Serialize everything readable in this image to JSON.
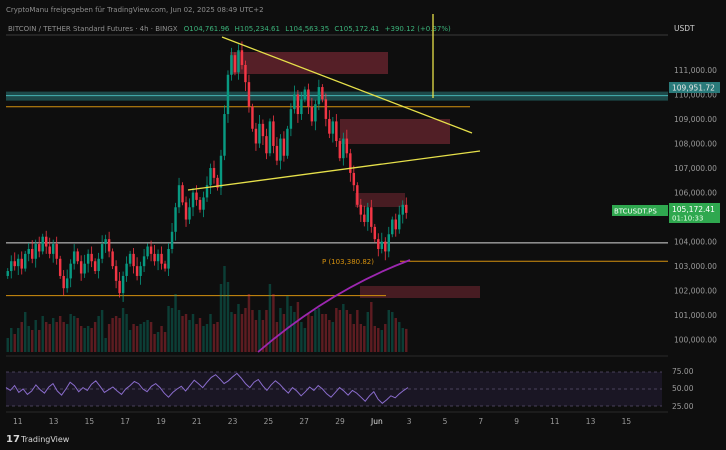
{
  "header": {
    "attribution": "CryptoManu freigegeben für TradingView.com, Jun 02, 2025 08:49 UTC+2",
    "symbol_line": "BITCOIN / TETHER Standard Futures · 4h · BINGX",
    "ohlc": {
      "open": "O104,761.96",
      "high": "H105,234.61",
      "low": "L104,563.35",
      "close": "C105,172.41",
      "change": "+390.12 (+0.37%)"
    }
  },
  "currency": "USDT",
  "price_labels": {
    "resistance": "109,951.72",
    "current_symbol": "BTCUSDT.PS",
    "current_price": "105,172.41",
    "countdown": "01:10:33",
    "low_marker": "P (103,380.82)"
  },
  "rsi_labels": [
    "75.00",
    "50.00",
    "25.00"
  ],
  "footer": {
    "brand": "TradingView"
  },
  "colors": {
    "background": "#0e0e0e",
    "up": "#089981",
    "down": "#f23645",
    "resistance_band": "#2a7a7a",
    "current_price": "#2fa84f",
    "trendline": "#e6e04a",
    "orange_level": "#d4900e",
    "supply_zone": "#6e2630",
    "rsi_line": "#8a6ccc",
    "ma_line": "#9c27b0"
  },
  "chart_data": {
    "type": "candlestick",
    "x_tick_labels": [
      "11",
      "13",
      "15",
      "17",
      "19",
      "21",
      "23",
      "25",
      "27",
      "29",
      "Jun",
      "3",
      "5",
      "7",
      "9",
      "11",
      "13",
      "15"
    ],
    "y_tick_labels": [
      "111,000.00",
      "110,000.00",
      "109,000.00",
      "108,000.00",
      "107,000.00",
      "106,000.00",
      "105,000.00",
      "104,000.00",
      "103,000.00",
      "102,000.00",
      "101,000.00",
      "100,000.00"
    ],
    "ylim": [
      99500,
      112300
    ],
    "grid": false,
    "close_series": [
      102800,
      103200,
      103000,
      103300,
      102900,
      103500,
      103700,
      103300,
      103900,
      103600,
      104200,
      103800,
      103500,
      103900,
      103300,
      102600,
      102100,
      102500,
      103100,
      103600,
      103200,
      102700,
      103100,
      103500,
      103200,
      102800,
      103300,
      103900,
      104100,
      103600,
      103000,
      102400,
      101900,
      102600,
      103100,
      103500,
      103000,
      102600,
      103000,
      103400,
      103800,
      103500,
      103200,
      103500,
      103100,
      102900,
      103700,
      104400,
      105400,
      106300,
      105600,
      104900,
      105400,
      106000,
      105700,
      105300,
      105800,
      106300,
      107000,
      106600,
      106200,
      107500,
      109200,
      110800,
      111600,
      110900,
      111800,
      111200,
      110500,
      109500,
      108600,
      108000,
      108800,
      108300,
      107600,
      108900,
      107900,
      107300,
      108200,
      107500,
      108600,
      109400,
      110000,
      109200,
      109800,
      110200,
      109500,
      108900,
      109600,
      110300,
      109800,
      109000,
      108400,
      108900,
      108100,
      107400,
      108200,
      107600,
      106800,
      106300,
      105500,
      105100,
      104800,
      105400,
      104600,
      104100,
      103700,
      104000,
      103600,
      104300,
      104900,
      104500,
      105100,
      105500,
      105172
    ],
    "levels": [
      {
        "price": 109951.72,
        "kind": "resistance"
      },
      {
        "price": 109500,
        "kind": "orange"
      },
      {
        "price": 103950,
        "kind": "white"
      },
      {
        "price": 103200,
        "kind": "orange"
      },
      {
        "price": 101800,
        "kind": "orange"
      }
    ],
    "rsi_values": [
      52,
      48,
      55,
      45,
      50,
      42,
      47,
      56,
      49,
      44,
      53,
      58,
      47,
      41,
      50,
      60,
      55,
      46,
      52,
      48,
      57,
      62,
      54,
      45,
      49,
      53,
      47,
      42,
      50,
      55,
      61,
      58,
      50,
      46,
      54,
      58,
      52,
      44,
      38,
      45,
      50,
      54,
      47,
      55,
      63,
      58,
      52,
      60,
      67,
      71,
      65,
      58,
      62,
      68,
      73,
      66,
      58,
      52,
      60,
      64,
      55,
      48,
      56,
      62,
      57,
      50,
      44,
      52,
      47,
      40,
      46,
      53,
      48,
      55,
      50,
      43,
      38,
      45,
      52,
      47,
      41,
      48,
      44,
      38,
      32,
      40,
      46,
      35,
      29,
      34,
      40,
      37,
      43,
      48,
      52
    ]
  }
}
